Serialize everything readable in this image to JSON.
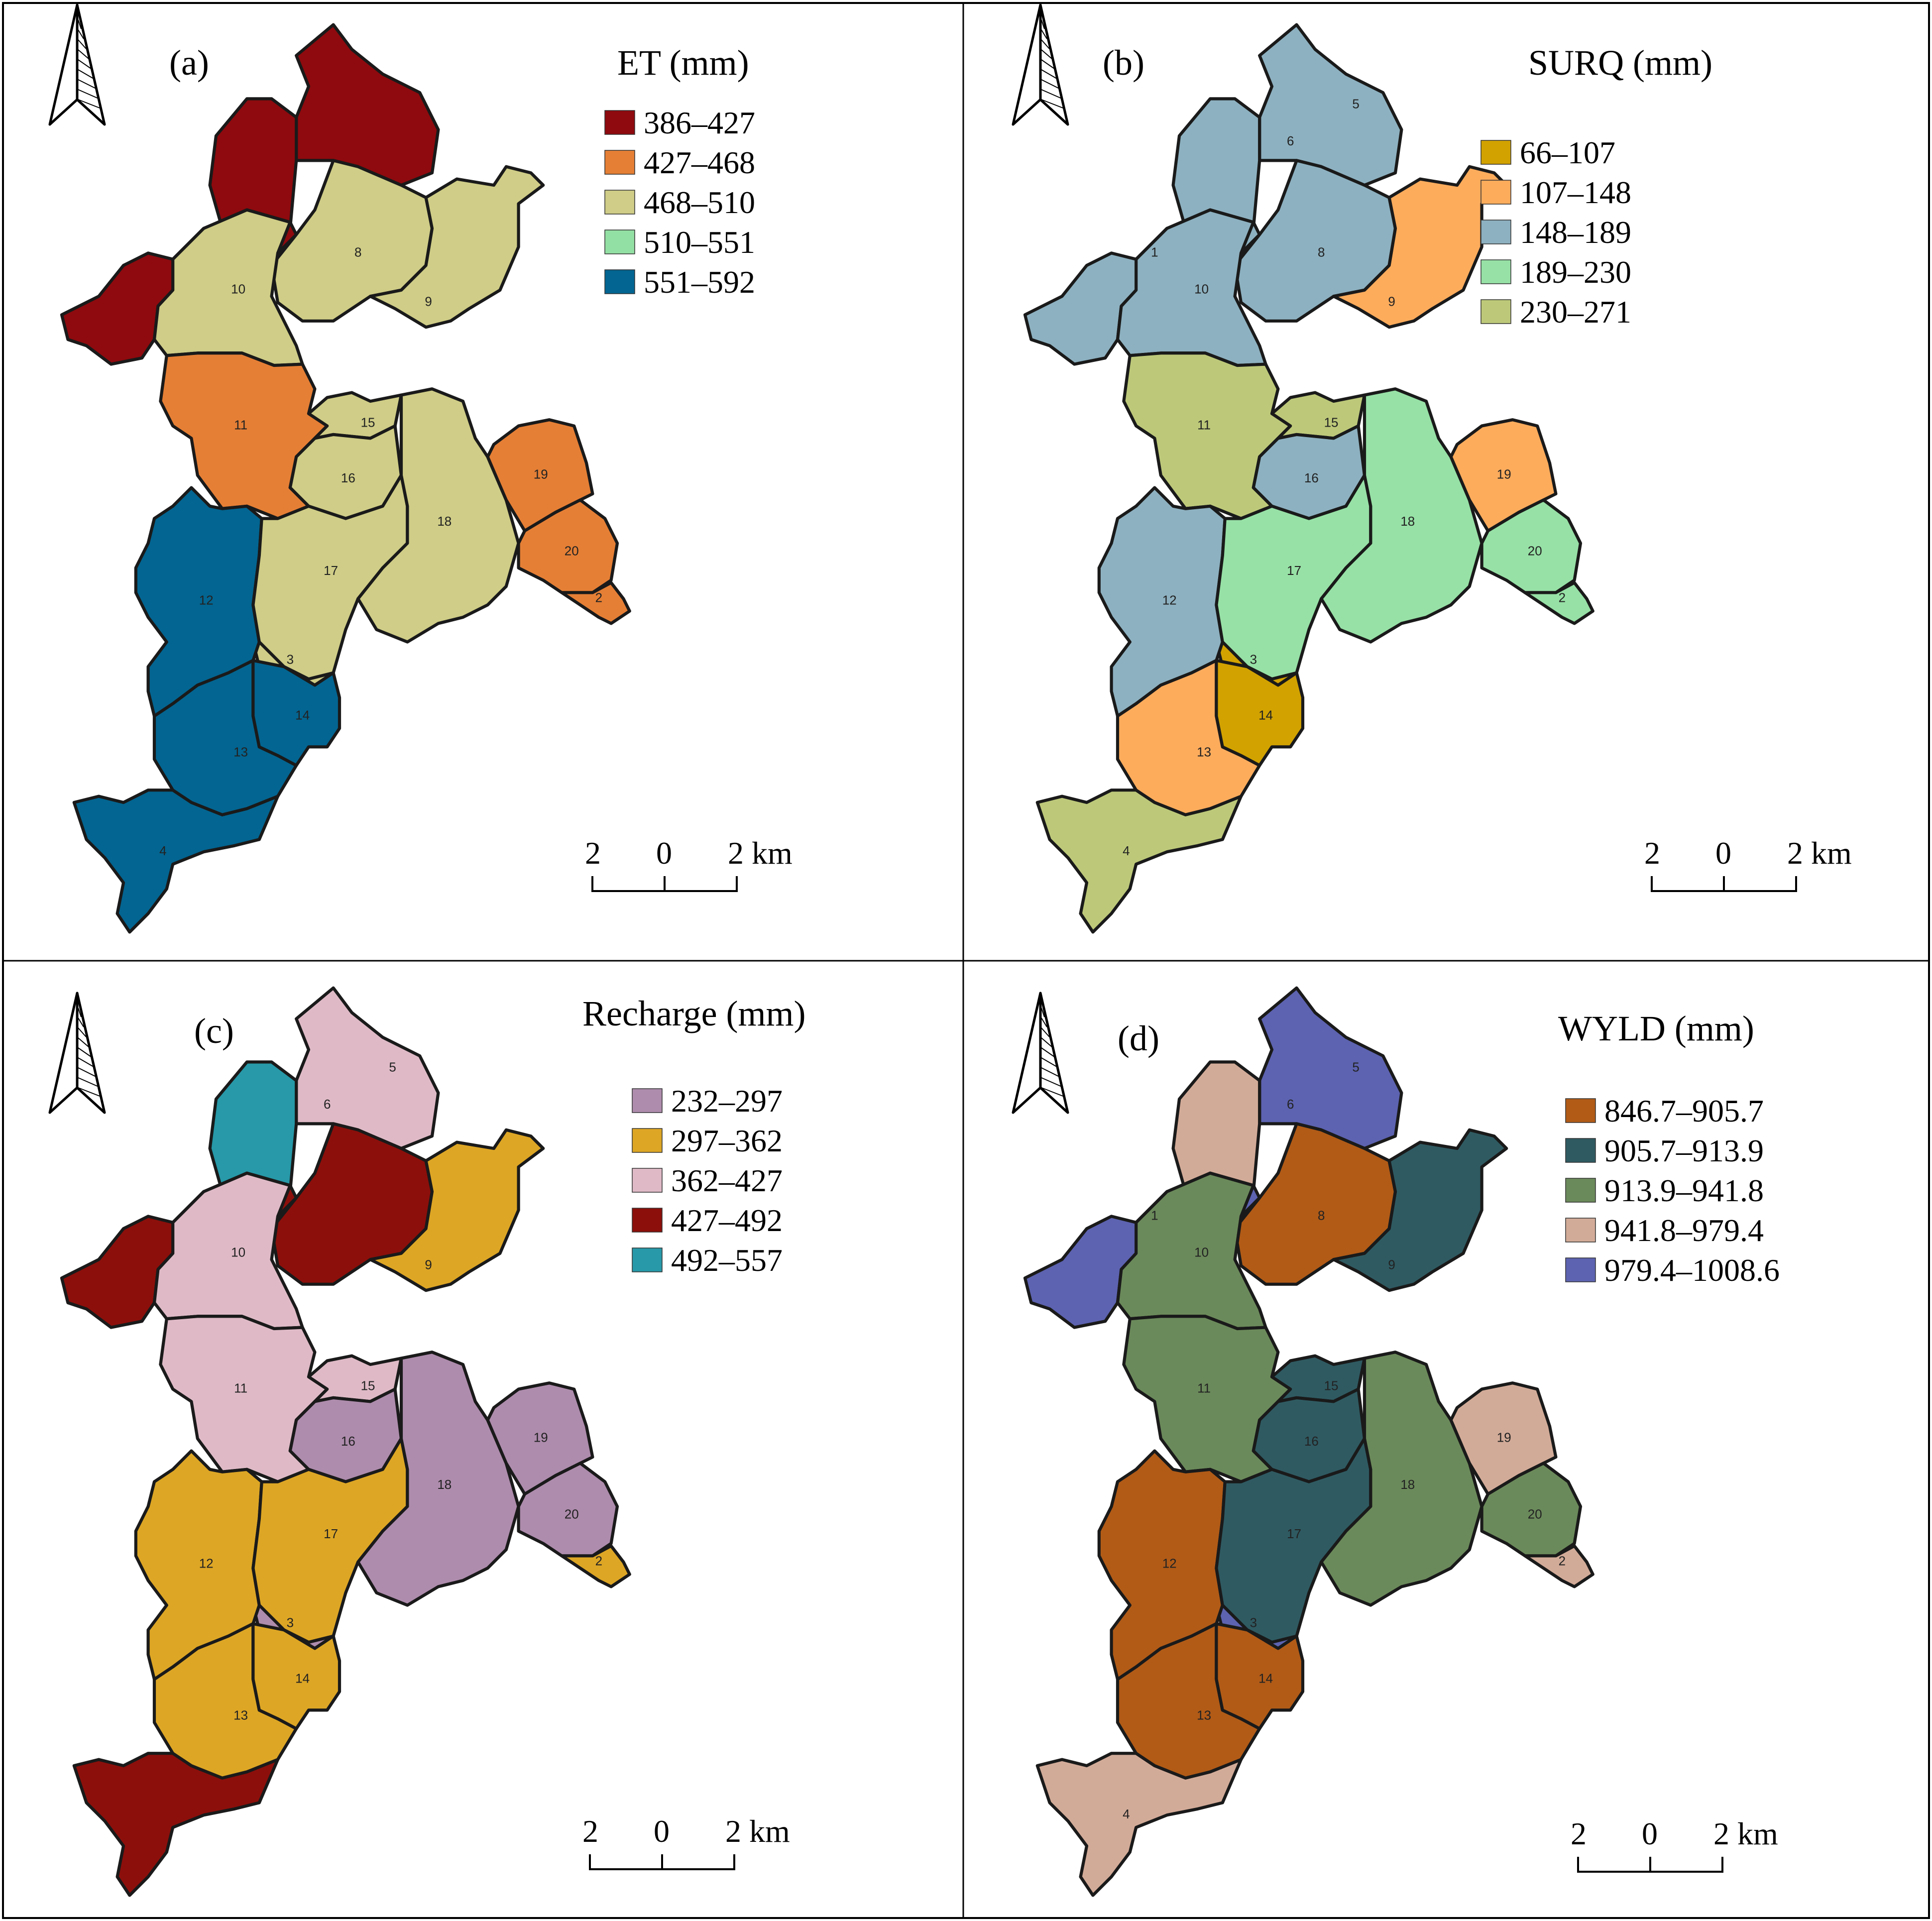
{
  "panels": [
    {
      "id": "a",
      "label": "(a)",
      "legend_title": "ET (mm)",
      "scale_bar": {
        "left": "2",
        "mid": "0",
        "right": "2 km"
      },
      "classes": [
        {
          "label": "386–427",
          "color": "#8e0a0e"
        },
        {
          "label": "427–468",
          "color": "#e57f35"
        },
        {
          "label": "468–510",
          "color": "#cfcd87"
        },
        {
          "label": "510–551",
          "color": "#93e0a4"
        },
        {
          "label": "551–592",
          "color": "#036591"
        }
      ],
      "subbasin_class": {
        "1": 0,
        "2": 1,
        "3": 2,
        "4": 4,
        "5": 0,
        "6": 0,
        "7": 0,
        "8": 2,
        "9": 2,
        "10": 2,
        "11": 1,
        "12": 4,
        "13": 4,
        "14": 4,
        "15": 2,
        "16": 2,
        "17": 2,
        "18": 2,
        "19": 1,
        "20": 1
      },
      "hidden_labels": [
        "1",
        "5",
        "6",
        "7"
      ]
    },
    {
      "id": "b",
      "label": "(b)",
      "legend_title": "SURQ (mm)",
      "scale_bar": {
        "left": "2",
        "mid": "0",
        "right": "2 km"
      },
      "classes": [
        {
          "label": "66–107",
          "color": "#d2a200"
        },
        {
          "label": "107–148",
          "color": "#fdac5c"
        },
        {
          "label": "148–189",
          "color": "#8db1c0"
        },
        {
          "label": "189–230",
          "color": "#97e1a6"
        },
        {
          "label": "230–271",
          "color": "#bdc979"
        }
      ],
      "subbasin_class": {
        "1": 1,
        "2": 3,
        "3": 0,
        "4": 4,
        "5": 2,
        "6": 2,
        "7": 2,
        "8": 2,
        "9": 1,
        "10": 2,
        "11": 4,
        "12": 2,
        "13": 1,
        "14": 0,
        "15": 4,
        "16": 2,
        "17": 3,
        "18": 3,
        "19": 1,
        "20": 3
      },
      "hidden_labels": [
        "7"
      ]
    },
    {
      "id": "c",
      "label": "(c)",
      "legend_title": "Recharge (mm)",
      "scale_bar": {
        "left": "2",
        "mid": "0",
        "right": "2 km"
      },
      "classes": [
        {
          "label": "232–297",
          "color": "#ae8cad"
        },
        {
          "label": "297–362",
          "color": "#dda625"
        },
        {
          "label": "362–427",
          "color": "#dfbac6"
        },
        {
          "label": "427–492",
          "color": "#8c0f0b"
        },
        {
          "label": "492–557",
          "color": "#2799a8"
        }
      ],
      "subbasin_class": {
        "1": 3,
        "2": 1,
        "3": 0,
        "4": 3,
        "5": 2,
        "6": 4,
        "7": 3,
        "8": 3,
        "9": 1,
        "10": 2,
        "11": 2,
        "12": 1,
        "13": 1,
        "14": 1,
        "15": 2,
        "16": 0,
        "17": 1,
        "18": 0,
        "19": 0,
        "20": 0
      },
      "hidden_labels": [
        "1",
        "4",
        "7",
        "8"
      ]
    },
    {
      "id": "d",
      "label": "(d)",
      "legend_title": "WYLD (mm)",
      "scale_bar": {
        "left": "2",
        "mid": "0",
        "right": "2 km"
      },
      "classes": [
        {
          "label": "846.7–905.7",
          "color": "#b15b17"
        },
        {
          "label": "905.7–913.9",
          "color": "#2f5a62"
        },
        {
          "label": "913.9–941.8",
          "color": "#6b8a5b"
        },
        {
          "label": "941.8–979.4",
          "color": "#d2ab98"
        },
        {
          "label": "979.4–1008.6",
          "color": "#5d63b0"
        }
      ],
      "subbasin_class": {
        "1": 4,
        "2": 3,
        "3": 4,
        "4": 3,
        "5": 4,
        "6": 3,
        "7": 4,
        "8": 0,
        "9": 1,
        "10": 2,
        "11": 2,
        "12": 0,
        "13": 0,
        "14": 0,
        "15": 1,
        "16": 1,
        "17": 1,
        "18": 2,
        "19": 3,
        "20": 2
      },
      "hidden_labels": [
        "7"
      ]
    }
  ],
  "subbasin_labels": [
    "1",
    "2",
    "3",
    "4",
    "5",
    "6",
    "7",
    "8",
    "9",
    "10",
    "11",
    "12",
    "13",
    "14",
    "15",
    "16",
    "17",
    "18",
    "19",
    "20"
  ]
}
